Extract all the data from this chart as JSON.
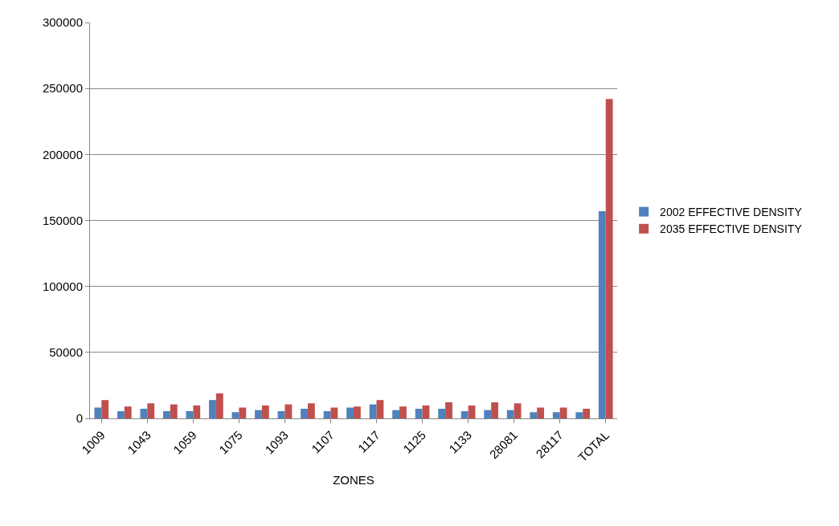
{
  "chart_data": {
    "type": "bar",
    "xlabel": "ZONES",
    "categories": [
      "1009",
      null,
      "1043",
      null,
      "1059",
      null,
      "1075",
      null,
      "1093",
      null,
      "1107",
      null,
      "1117",
      null,
      "1125",
      null,
      "1133",
      null,
      "28081",
      null,
      "28117",
      null,
      "TOTAL"
    ],
    "series": [
      {
        "name": "2002 EFFECTIVE DENSITY",
        "color": "#4f81bd",
        "values": [
          8200,
          5500,
          7300,
          5500,
          5500,
          13900,
          4700,
          6300,
          5500,
          7300,
          5500,
          8200,
          10600,
          6300,
          7300,
          7300,
          5500,
          6300,
          6300,
          4700,
          4700,
          4700,
          157000
        ]
      },
      {
        "name": "2035 EFFECTIVE DENSITY",
        "color": "#c0504d",
        "values": [
          13900,
          9000,
          11400,
          10600,
          9800,
          19000,
          8200,
          9800,
          10600,
          11400,
          8200,
          9000,
          13900,
          9000,
          9800,
          12200,
          9800,
          12200,
          11400,
          8200,
          8200,
          7300,
          242000
        ]
      }
    ],
    "ylim": [
      0,
      300000
    ],
    "yticks": [
      0,
      50000,
      100000,
      150000,
      200000,
      250000,
      300000
    ],
    "grid": "y",
    "legend": "right"
  }
}
